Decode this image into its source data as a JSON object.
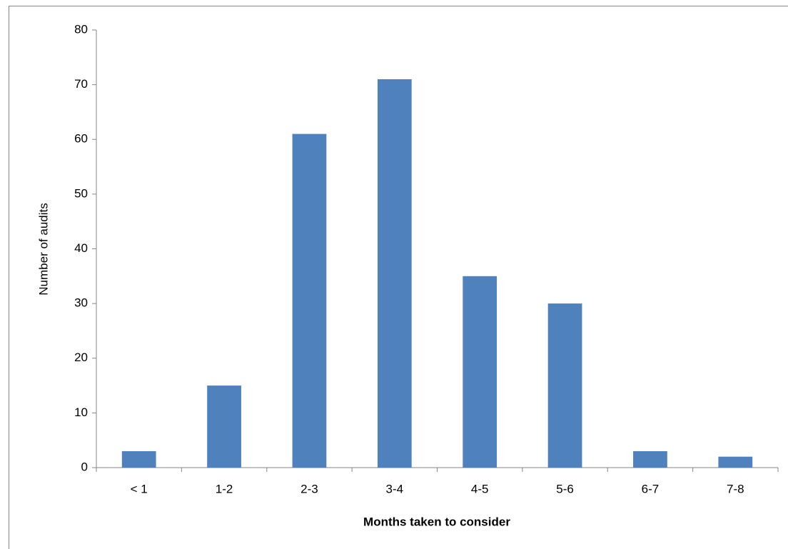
{
  "chart_data": {
    "type": "bar",
    "x_label": "Months taken to consider",
    "y_label": "Number of audits",
    "categories": [
      "< 1",
      "1-2",
      "2-3",
      "3-4",
      "4-5",
      "5-6",
      "6-7",
      "7-8"
    ],
    "values": [
      3,
      15,
      61,
      71,
      35,
      30,
      3,
      2
    ],
    "color": "#4f81bd",
    "ylim": [
      0,
      80
    ],
    "yticks": [
      0,
      10,
      20,
      30,
      40,
      50,
      60,
      70,
      80
    ],
    "grid": false
  }
}
